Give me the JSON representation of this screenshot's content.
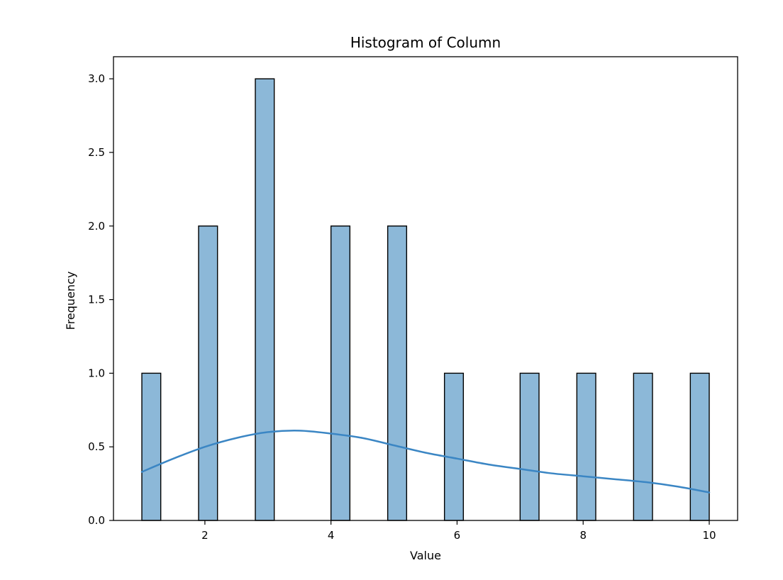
{
  "chart_data": {
    "type": "bar",
    "title": "Histogram of Column",
    "xlabel": "Value",
    "ylabel": "Frequency",
    "xlim": [
      0.55,
      10.45
    ],
    "ylim": [
      0,
      3.15
    ],
    "x_ticks": [
      2,
      4,
      6,
      8,
      10
    ],
    "x_tick_labels": [
      "2",
      "4",
      "6",
      "8",
      "10"
    ],
    "y_ticks": [
      0,
      0.5,
      1,
      1.5,
      2,
      2.5,
      3
    ],
    "y_tick_labels": [
      "0.0",
      "0.5",
      "1.0",
      "1.5",
      "2.0",
      "2.5",
      "3.0"
    ],
    "bin_start": 1,
    "bin_width": 0.3,
    "bins": [
      {
        "start": 1.0,
        "end": 1.3,
        "count": 1
      },
      {
        "start": 1.9,
        "end": 2.2,
        "count": 2
      },
      {
        "start": 2.8,
        "end": 3.1,
        "count": 3
      },
      {
        "start": 4.0,
        "end": 4.3,
        "count": 2
      },
      {
        "start": 4.9,
        "end": 5.2,
        "count": 2
      },
      {
        "start": 5.8,
        "end": 6.1,
        "count": 1
      },
      {
        "start": 7.0,
        "end": 7.3,
        "count": 1
      },
      {
        "start": 7.9,
        "end": 8.2,
        "count": 1
      },
      {
        "start": 8.8,
        "end": 9.1,
        "count": 1
      },
      {
        "start": 9.7,
        "end": 10.0,
        "count": 1
      }
    ],
    "kde": {
      "x": [
        1,
        1.5,
        2,
        2.5,
        3,
        3.5,
        4,
        4.5,
        5,
        5.5,
        6,
        6.5,
        7,
        7.5,
        8,
        8.5,
        9,
        9.5,
        10
      ],
      "y": [
        0.33,
        0.42,
        0.5,
        0.56,
        0.6,
        0.61,
        0.59,
        0.56,
        0.51,
        0.46,
        0.42,
        0.38,
        0.35,
        0.32,
        0.3,
        0.28,
        0.26,
        0.23,
        0.19
      ]
    },
    "colors": {
      "bar_fill": "#8cb8d8",
      "bar_stroke": "#000000",
      "kde_line": "#3b86c4",
      "axis": "#000000"
    },
    "grid": false,
    "legend": false
  }
}
